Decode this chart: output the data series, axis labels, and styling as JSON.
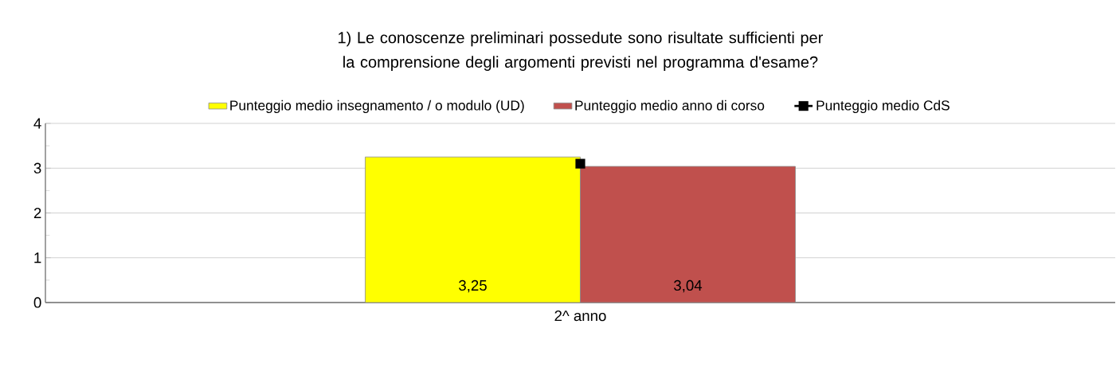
{
  "chart_data": {
    "type": "bar",
    "title": "1) Le conoscenze preliminari possedute sono risultate sufficienti per la comprensione degli argomenti previsti nel programma d'esame?",
    "categories": [
      "2^ anno"
    ],
    "series": [
      {
        "name": "Punteggio medio insegnamento / o modulo  (UD)",
        "color": "#ffff00",
        "values": [
          3.25
        ],
        "value_labels": [
          "3,25"
        ]
      },
      {
        "name": "Punteggio medio anno di corso",
        "color": "#c0504d",
        "values": [
          3.04
        ],
        "value_labels": [
          "3,04"
        ]
      },
      {
        "name": "Punteggio medio CdS",
        "type": "line",
        "color": "#000000",
        "values": [
          3.1
        ]
      }
    ],
    "ylim": [
      0,
      4
    ],
    "yticks": [
      0,
      1,
      2,
      3,
      4
    ],
    "grid": "y",
    "legend": "top",
    "marker": "square"
  }
}
